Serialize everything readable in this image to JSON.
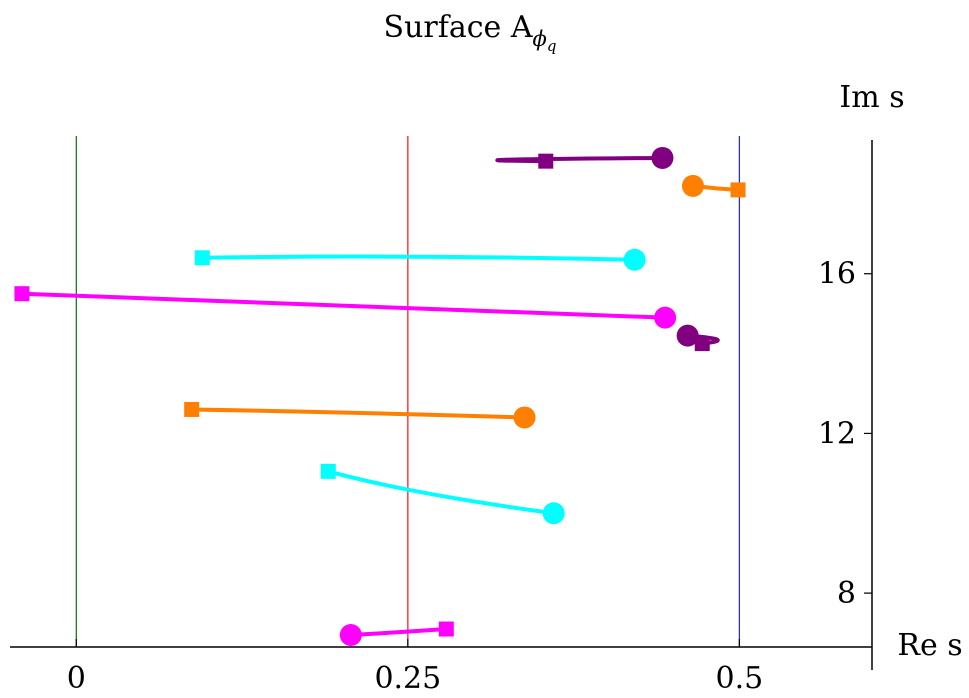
{
  "chart_data": {
    "type": "line",
    "title": "Surface A",
    "title_subscript": "ϕ",
    "title_subsubscript": "q",
    "xlabel": "Re s",
    "ylabel": "Im s",
    "xlim": [
      -0.05,
      0.6
    ],
    "ylim": [
      6.65,
      19.35
    ],
    "x_ticks": [
      {
        "value": 0,
        "label": "0"
      },
      {
        "value": 0.25,
        "label": "0.25"
      },
      {
        "value": 0.5,
        "label": "0.5"
      }
    ],
    "y_ticks": [
      {
        "value": 8,
        "label": "8"
      },
      {
        "value": 12,
        "label": "12"
      },
      {
        "value": 16,
        "label": "16"
      }
    ],
    "vertical_lines": [
      {
        "x": 0,
        "color": "#1a7a1a"
      },
      {
        "x": 0.25,
        "color": "#ff2020"
      },
      {
        "x": 0.5,
        "color": "#3333aa"
      }
    ],
    "series": [
      {
        "color": "#ff00ff",
        "start": [
          0.279,
          7.1
        ],
        "end": [
          0.207,
          6.95
        ],
        "mid": [
          0.245,
          7.02
        ]
      },
      {
        "color": "#00ffff",
        "start": [
          0.19,
          11.05
        ],
        "end": [
          0.36,
          10.0
        ],
        "mid": [
          0.25,
          10.5
        ]
      },
      {
        "color": "#ff8000",
        "start": [
          0.087,
          12.6
        ],
        "end": [
          0.338,
          12.4
        ],
        "mid": [
          0.21,
          12.53
        ]
      },
      {
        "color": "#ff00ff",
        "start": [
          -0.041,
          15.5
        ],
        "end": [
          0.444,
          14.9
        ],
        "mid": [
          0.2,
          15.22
        ]
      },
      {
        "color": "#800080",
        "start": [
          0.472,
          14.25
        ],
        "end": [
          0.461,
          14.45
        ],
        "mid": [
          0.5,
          14.35
        ]
      },
      {
        "color": "#00ffff",
        "start": [
          0.095,
          16.4
        ],
        "end": [
          0.421,
          16.35
        ],
        "mid": [
          0.25,
          16.48
        ]
      },
      {
        "color": "#ff8000",
        "start": [
          0.499,
          18.1
        ],
        "end": [
          0.465,
          18.2
        ],
        "mid": [
          0.482,
          18.13
        ]
      },
      {
        "color": "#800080",
        "start": [
          0.354,
          18.82
        ],
        "end": [
          0.442,
          18.9
        ],
        "mid": [
          0.25,
          18.85
        ]
      }
    ]
  }
}
